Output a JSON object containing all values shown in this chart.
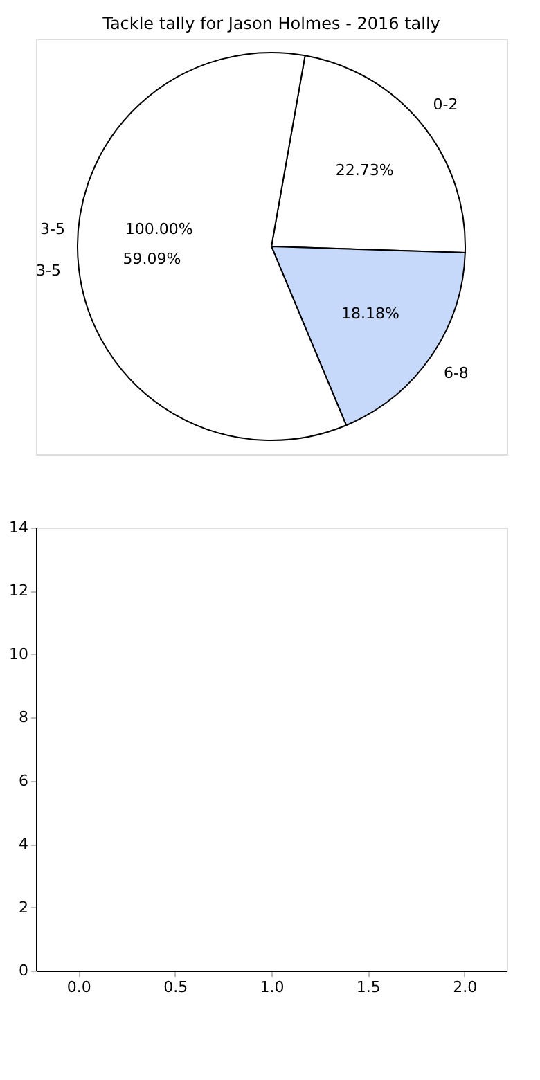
{
  "chart_data": [
    {
      "type": "pie",
      "title": "Tackle tally for Jason Holmes - 2016 tally",
      "categories": [
        "0-2",
        "6-8",
        "3-5"
      ],
      "values": [
        22.73,
        18.18,
        59.09
      ],
      "value_labels": [
        "22.73%",
        "18.18%",
        "59.09%"
      ],
      "colors": [
        "#ffffff",
        "#c6d9fb",
        "#ffffff"
      ],
      "annotations": [
        "3-5",
        "100.00%"
      ]
    },
    {
      "type": "scatter",
      "xlim": [
        -0.22,
        2.22
      ],
      "ylim": [
        0,
        14
      ],
      "xticks": [
        {
          "value": 0.0,
          "label": "0.0"
        },
        {
          "value": 0.5,
          "label": "0.5"
        },
        {
          "value": 1.0,
          "label": "1.0"
        },
        {
          "value": 1.5,
          "label": "1.5"
        },
        {
          "value": 2.0,
          "label": "2.0"
        }
      ],
      "yticks": [
        0,
        2,
        4,
        6,
        8,
        10,
        12,
        14
      ]
    }
  ]
}
